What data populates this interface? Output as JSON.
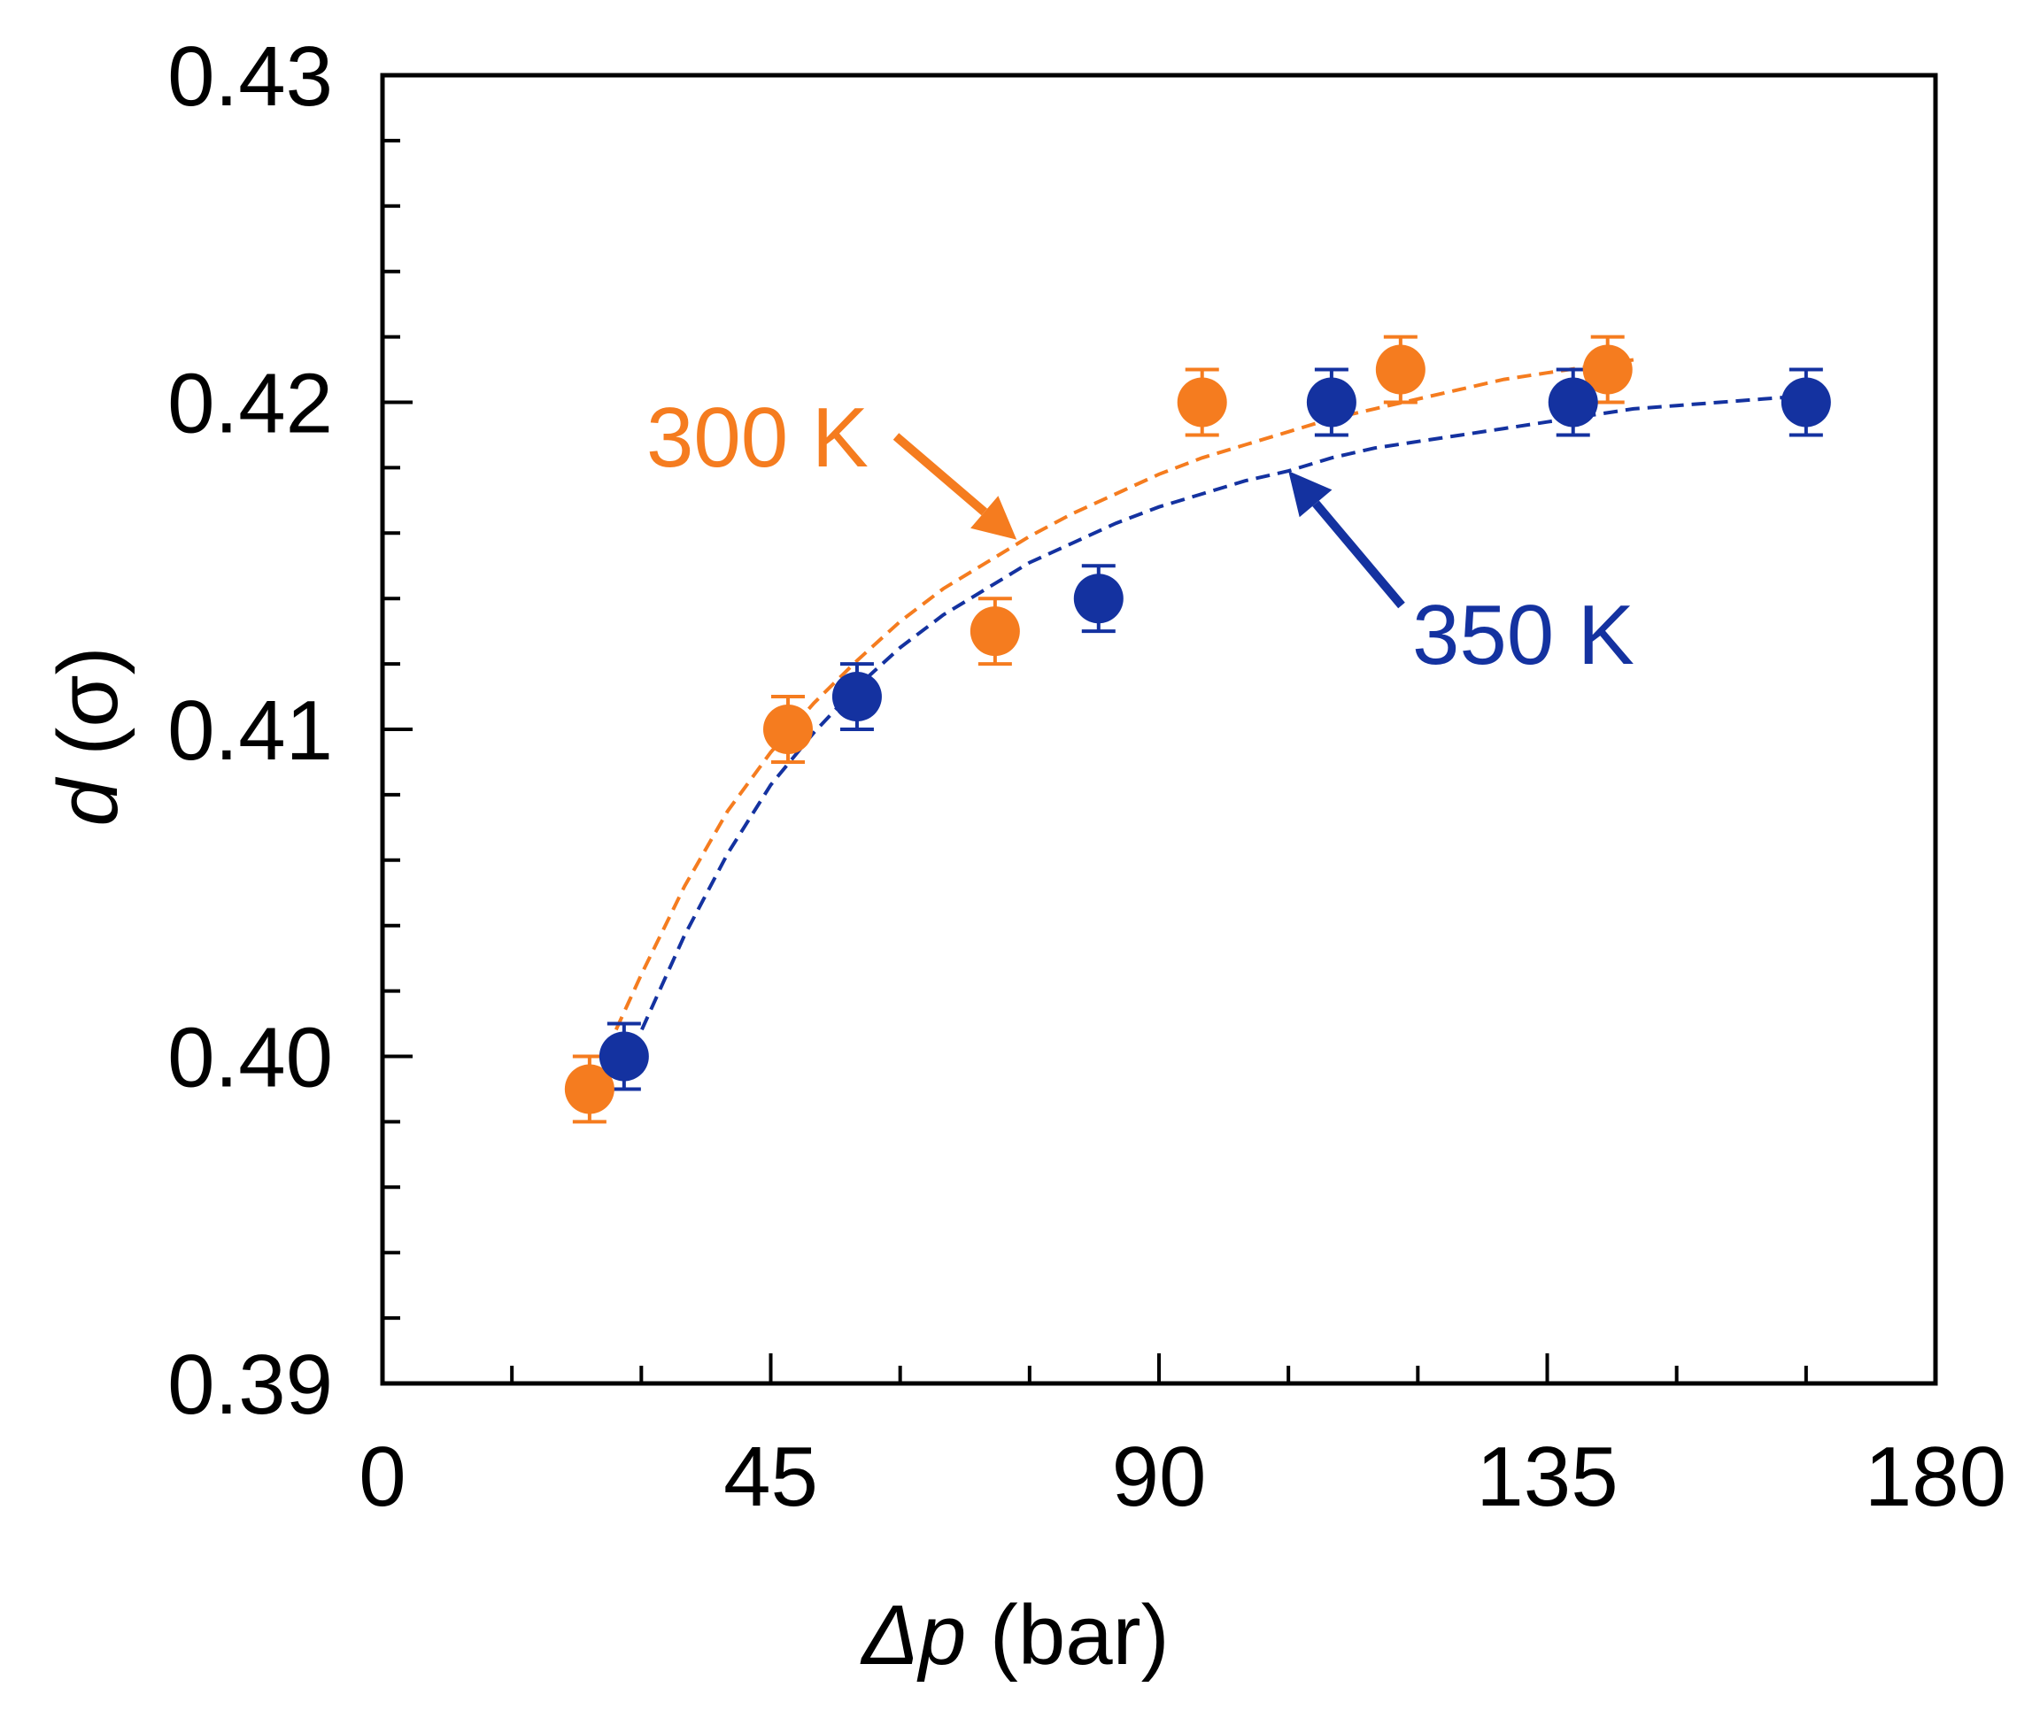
{
  "chart_data": {
    "type": "scatter",
    "xlabel_var": "Δp",
    "xlabel_unit": " (bar)",
    "ylabel_var": "d",
    "ylabel_unit": " (σ)",
    "xlim": [
      0,
      180
    ],
    "ylim": [
      0.39,
      0.43
    ],
    "xticks": [
      0,
      45,
      90,
      135,
      180
    ],
    "xtick_labels": [
      "0",
      "45",
      "90",
      "135",
      "180"
    ],
    "xminor_step": 15,
    "yticks": [
      0.39,
      0.4,
      0.41,
      0.42,
      0.43
    ],
    "ytick_labels": [
      "0.39",
      "0.40",
      "0.41",
      "0.42",
      "0.43"
    ],
    "yminor_step": 0.002,
    "series": [
      {
        "name": "300 K",
        "color": "#f57c1f",
        "x": [
          24,
          47,
          71,
          95,
          118,
          142
        ],
        "y": [
          0.399,
          0.41,
          0.413,
          0.42,
          0.421,
          0.421
        ],
        "err": [
          0.001,
          0.001,
          0.001,
          0.001,
          0.001,
          0.001
        ],
        "fit_x": [
          26,
          30,
          35,
          40,
          45,
          50,
          55,
          60,
          65,
          70,
          75,
          80,
          85,
          90,
          95,
          100,
          105,
          110,
          115,
          120,
          125,
          130,
          135,
          140,
          145
        ],
        "fit_y": [
          0.4002,
          0.4025,
          0.4052,
          0.4075,
          0.4093,
          0.4108,
          0.4121,
          0.4133,
          0.4143,
          0.4151,
          0.4159,
          0.4166,
          0.4172,
          0.4178,
          0.4183,
          0.4187,
          0.4191,
          0.4195,
          0.4198,
          0.4201,
          0.4204,
          0.4207,
          0.4209,
          0.4211,
          0.4213
        ]
      },
      {
        "name": "350 K",
        "color": "#1432a0",
        "x": [
          28,
          55,
          83,
          110,
          138,
          165
        ],
        "y": [
          0.4,
          0.411,
          0.414,
          0.42,
          0.42,
          0.42
        ],
        "err": [
          0.001,
          0.001,
          0.001,
          0.001,
          0.001,
          0.001
        ],
        "fit_x": [
          29,
          35,
          40,
          45,
          50,
          55,
          60,
          65,
          70,
          75,
          80,
          85,
          90,
          95,
          100,
          105,
          110,
          115,
          120,
          125,
          130,
          135,
          140,
          145,
          150,
          155,
          160,
          165
        ],
        "fit_y": [
          0.4002,
          0.4037,
          0.4062,
          0.4083,
          0.4099,
          0.4113,
          0.4125,
          0.4135,
          0.4143,
          0.4151,
          0.4157,
          0.4163,
          0.4168,
          0.4172,
          0.4176,
          0.4179,
          0.4183,
          0.4186,
          0.4188,
          0.419,
          0.4192,
          0.4194,
          0.4196,
          0.4198,
          0.4199,
          0.42,
          0.4201,
          0.4202
        ]
      }
    ],
    "annotations": [
      {
        "text": "300 K",
        "series": 0,
        "arrow_to": [
          73.5,
          0.4158
        ]
      },
      {
        "text": "350 K",
        "series": 1,
        "arrow_to": [
          105,
          0.4179
        ]
      }
    ]
  }
}
